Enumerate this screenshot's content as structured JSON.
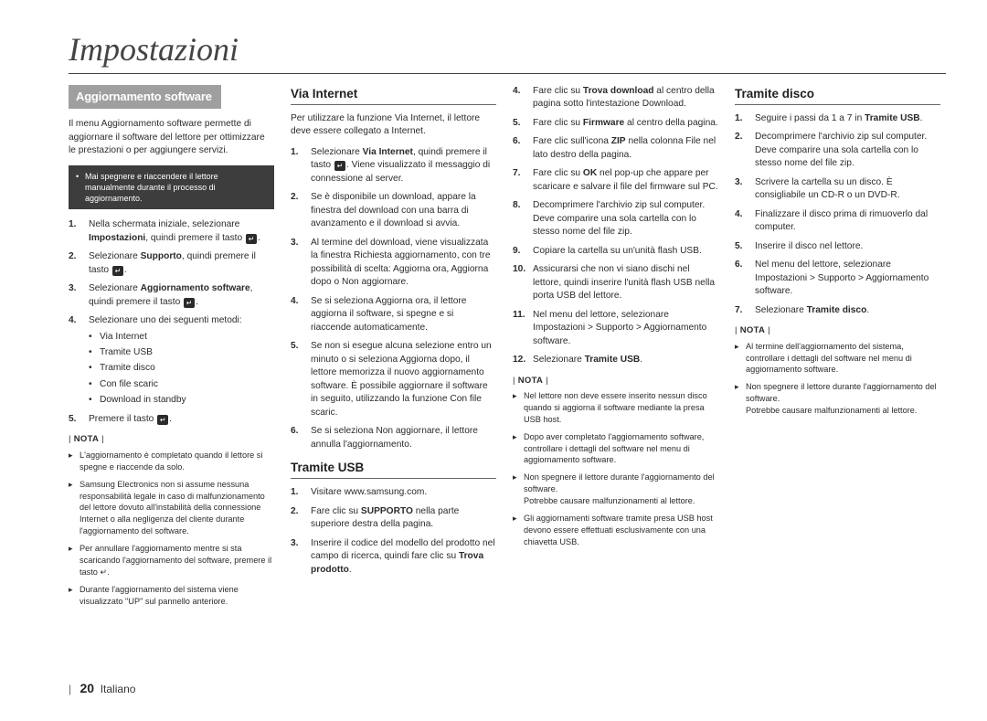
{
  "page_title": "Impostazioni",
  "footer": {
    "page_number": "20",
    "language": "Italiano"
  },
  "col1": {
    "section_tab": "Aggiornamento software",
    "intro": "Il menu Aggiornamento software permette di aggiornare il software del lettore per ottimizzare le prestazioni o per aggiungere servizi.",
    "black_box": "Mai spegnere e riaccendere il lettore manualmente durante il processo di aggiornamento.",
    "steps": {
      "s1a": "Nella schermata iniziale, selezionare ",
      "s1b": "Impostazioni",
      "s1c": ", quindi premere il tasto ",
      "s2a": "Selezionare ",
      "s2b": "Supporto",
      "s2c": ", quindi premere il tasto ",
      "s3a": "Selezionare ",
      "s3b": "Aggiornamento software",
      "s3c": ", quindi premere il tasto ",
      "s4": "Selezionare uno dei seguenti metodi:",
      "methods": [
        "Via Internet",
        "Tramite USB",
        "Tramite disco",
        "Con file scaric",
        "Download in standby"
      ],
      "s5a": "Premere il tasto "
    },
    "nota_label": "NOTA",
    "notes": [
      "L'aggiornamento è completato quando il lettore si spegne e riaccende da solo.",
      "Samsung Electronics non si assume nessuna responsabilità legale in caso di malfunzionamento del lettore dovuto all'instabilità della connessione Internet o alla negligenza del cliente durante l'aggiornamento del software.",
      "Per annullare l'aggiornamento mentre si sta scaricando l'aggiornamento del software, premere il tasto ↵.",
      "Durante l'aggiornamento del sistema viene visualizzato \"UP\" sul pannello anteriore."
    ]
  },
  "col2": {
    "h_internet": "Via Internet",
    "internet_intro": "Per utilizzare la funzione Via Internet, il lettore deve essere collegato a Internet.",
    "internet_steps": {
      "s1a": "Selezionare ",
      "s1b": "Via Internet",
      "s1c": ", quindi premere il tasto ",
      "s1d": ". Viene visualizzato il messaggio di connessione al server.",
      "s2": "Se è disponibile un download, appare la finestra del download con una barra di avanzamento e il download si avvia.",
      "s3": "Al termine del download, viene visualizzata la finestra Richiesta aggiornamento, con tre possibilità di scelta: Aggiorna ora, Aggiorna dopo o Non aggiornare.",
      "s4": "Se si seleziona Aggiorna ora, il lettore aggiorna il software, si spegne e si riaccende automaticamente.",
      "s5": "Se non si esegue alcuna selezione entro un minuto o si seleziona Aggiorna dopo, il lettore memorizza il nuovo aggiornamento software. È possibile aggiornare il software in seguito, utilizzando la funzione Con file scaric.",
      "s6": "Se si seleziona Non aggiornare, il lettore annulla l'aggiornamento."
    },
    "h_usb": "Tramite USB",
    "usb_steps": {
      "s1": "Visitare www.samsung.com.",
      "s2a": "Fare clic su ",
      "s2b": "SUPPORTO",
      "s2c": " nella parte superiore destra della pagina.",
      "s3a": "Inserire il codice del modello del prodotto nel campo di ricerca, quindi fare clic su ",
      "s3b": "Trova prodotto",
      "s3c": "."
    }
  },
  "col3": {
    "steps": {
      "s4a": "Fare clic su ",
      "s4b": "Trova download",
      "s4c": " al centro della pagina sotto l'intestazione Download.",
      "s5a": "Fare clic su ",
      "s5b": "Firmware",
      "s5c": " al centro della pagina.",
      "s6a": "Fare clic sull'icona ",
      "s6b": "ZIP",
      "s6c": " nella colonna File nel lato destro della pagina.",
      "s7a": "Fare clic su ",
      "s7b": "OK",
      "s7c": " nel pop-up che appare per scaricare e salvare il file del firmware sul PC.",
      "s8": "Decomprimere l'archivio zip sul computer. Deve comparire una sola cartella con lo stesso nome del file zip.",
      "s9": "Copiare la cartella su un'unità flash USB.",
      "s10": "Assicurarsi che non vi siano dischi nel lettore, quindi inserire l'unità flash USB nella porta USB del lettore.",
      "s11": "Nel menu del lettore, selezionare Impostazioni > Supporto > Aggiornamento software.",
      "s12a": "Selezionare ",
      "s12b": "Tramite USB",
      "s12c": "."
    },
    "nota_label": "NOTA",
    "notes": [
      "Nel lettore non deve essere inserito nessun disco quando si aggiorna il software mediante la presa USB host.",
      "Dopo aver completato l'aggiornamento software, controllare i dettagli del software nel menu di aggiornamento software.",
      "Non spegnere il lettore durante l'aggiornamento del software.\nPotrebbe causare malfunzionamenti al lettore.",
      "Gli aggiornamenti software tramite presa USB host devono essere effettuati esclusivamente con una chiavetta USB."
    ]
  },
  "col4": {
    "h_disc": "Tramite disco",
    "steps": {
      "s1a": "Seguire i passi da 1 a 7 in ",
      "s1b": "Tramite USB",
      "s1c": ".",
      "s2": "Decomprimere l'archivio zip sul computer. Deve comparire una sola cartella con lo stesso nome del file zip.",
      "s3": "Scrivere la cartella su un disco. È consigliabile un CD-R o un DVD-R.",
      "s4": "Finalizzare il disco prima di rimuoverlo dal computer.",
      "s5": "Inserire il disco nel lettore.",
      "s6": "Nel menu del lettore, selezionare Impostazioni > Supporto > Aggiornamento software.",
      "s7a": "Selezionare ",
      "s7b": "Tramite disco",
      "s7c": "."
    },
    "nota_label": "NOTA",
    "notes": [
      "Al termine dell'aggiornamento del sistema, controllare i dettagli del software nel menu di aggiornamento software.",
      "Non spegnere il lettore durante l'aggiornamento del software.\nPotrebbe causare malfunzionamenti al lettore."
    ]
  }
}
